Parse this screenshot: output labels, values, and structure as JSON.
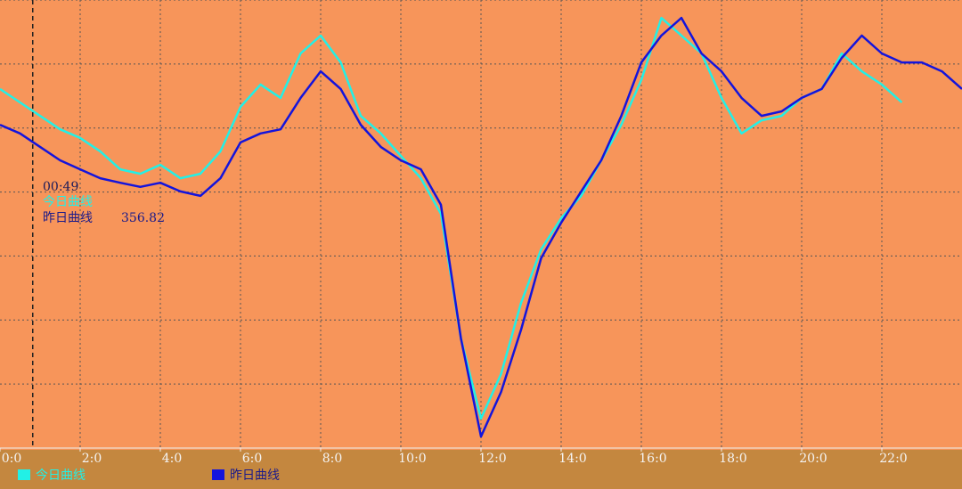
{
  "chart_data": {
    "type": "line",
    "x": [
      0,
      0.5,
      1,
      1.5,
      2,
      2.5,
      3,
      3.5,
      4,
      4.5,
      5,
      5.5,
      6,
      6.5,
      7,
      7.5,
      8,
      8.5,
      9,
      9.5,
      10,
      10.5,
      11,
      11.5,
      12,
      12.5,
      13,
      13.5,
      14,
      14.5,
      15,
      15.5,
      16,
      16.5,
      17,
      17.5,
      18,
      18.5,
      19,
      19.5,
      20,
      20.5,
      21,
      21.5,
      22,
      22.5,
      23,
      23.5,
      24
    ],
    "series": [
      {
        "name": "今日曲线",
        "color": "#22f0e6",
        "values": [
          372.2,
          368.0,
          363.8,
          359.6,
          356.9,
          352.7,
          347.1,
          345.7,
          348.5,
          344.3,
          345.7,
          352.7,
          366.6,
          373.6,
          369.4,
          383.3,
          388.9,
          380.5,
          363.8,
          358.3,
          351.3,
          344.3,
          333.2,
          294.2,
          269.2,
          283.1,
          305.4,
          322.1,
          331.8,
          338.8,
          349.9,
          361.0,
          375.0,
          394.4,
          388.9,
          383.3,
          369.4,
          358.3,
          362.4,
          363.8,
          369.4,
          372.2,
          383.3,
          377.7,
          373.6,
          368.0,
          null,
          null,
          null
        ]
      },
      {
        "name": "昨日曲线",
        "color": "#1414dc",
        "values": [
          361.0,
          358.3,
          354.1,
          349.9,
          347.1,
          344.3,
          342.9,
          341.6,
          342.9,
          340.2,
          338.8,
          344.3,
          355.5,
          358.3,
          359.6,
          369.4,
          377.7,
          372.2,
          361.0,
          354.1,
          349.9,
          347.1,
          336.0,
          294.2,
          263.6,
          277.5,
          297.0,
          319.3,
          330.4,
          340.2,
          349.9,
          363.8,
          380.5,
          388.9,
          394.4,
          383.3,
          377.7,
          369.4,
          363.8,
          365.2,
          369.4,
          372.2,
          381.9,
          388.9,
          383.3,
          380.5,
          380.5,
          377.7,
          372.2
        ]
      }
    ],
    "xlim": [
      0,
      24
    ],
    "xticks": [
      {
        "value": 0,
        "label": "0:0"
      },
      {
        "value": 2,
        "label": "2:0"
      },
      {
        "value": 4,
        "label": "4:0"
      },
      {
        "value": 6,
        "label": "6:0"
      },
      {
        "value": 8,
        "label": "8:0"
      },
      {
        "value": 10,
        "label": "10:0"
      },
      {
        "value": 12,
        "label": "12:0"
      },
      {
        "value": 14,
        "label": "14:0"
      },
      {
        "value": 16,
        "label": "16:0"
      },
      {
        "value": 18,
        "label": "18:0"
      },
      {
        "value": 20,
        "label": "20:0"
      },
      {
        "value": 22,
        "label": "22:0"
      }
    ],
    "ylim": [
      260,
      400
    ],
    "yticks": [
      260,
      280,
      300,
      320,
      340,
      360,
      380,
      400
    ],
    "grid": true,
    "tooltip": {
      "time": "00:49",
      "today_label": "今日曲线",
      "yesterday_label": "昨日曲线",
      "yesterday_value": 356.82
    }
  }
}
